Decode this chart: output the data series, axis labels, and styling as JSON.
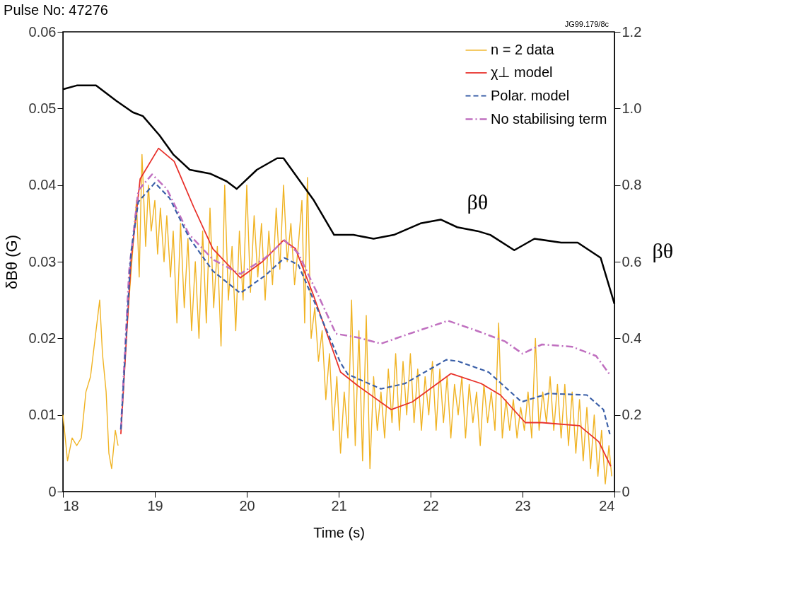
{
  "chart_data": {
    "type": "line",
    "title": "Pulse No: 47276",
    "xlabel": "Time (s)",
    "ylabel": "δBθ (G)",
    "y2label": "βθ",
    "annotations": [
      "JG99.179/8c"
    ],
    "xlim": [
      18,
      24
    ],
    "xticks": [
      18,
      19,
      20,
      21,
      22,
      23,
      24
    ],
    "ylim": [
      0,
      0.06
    ],
    "yticks": [
      0,
      0.01,
      0.02,
      0.03,
      0.04,
      0.05,
      0.06
    ],
    "y2lim": [
      0,
      1.2
    ],
    "y2ticks": [
      0,
      0.2,
      0.4,
      0.6,
      0.8,
      {
        "value": 1,
        "label": "1.0"
      },
      1.2
    ],
    "grid": false,
    "legend": "top right",
    "marker": "none",
    "series": [
      {
        "name": "n = 2 data",
        "color": "#f0b323",
        "line_style": "solid",
        "x": [
          18.0,
          18.05,
          18.1,
          18.15,
          18.2,
          18.25,
          18.3,
          18.35,
          18.4,
          18.43,
          18.47,
          18.5,
          18.53,
          18.57,
          18.6,
          18.65,
          18.7,
          18.75,
          18.8,
          18.83,
          18.86,
          18.9,
          18.93,
          18.96,
          19.0,
          19.03,
          19.06,
          19.1,
          19.13,
          19.17,
          19.2,
          19.24,
          19.28,
          19.32,
          19.36,
          19.4,
          19.44,
          19.48,
          19.52,
          19.56,
          19.6,
          19.64,
          19.68,
          19.72,
          19.76,
          19.8,
          19.84,
          19.88,
          19.92,
          19.96,
          20.0,
          20.04,
          20.08,
          20.12,
          20.16,
          20.2,
          20.24,
          20.28,
          20.32,
          20.36,
          20.4,
          20.44,
          20.48,
          20.52,
          20.56,
          20.6,
          20.63,
          20.66,
          20.7,
          20.74,
          20.78,
          20.82,
          20.86,
          20.9,
          20.94,
          20.98,
          21.02,
          21.06,
          21.1,
          21.14,
          21.18,
          21.22,
          21.26,
          21.3,
          21.34,
          21.38,
          21.42,
          21.46,
          21.5,
          21.54,
          21.58,
          21.62,
          21.66,
          21.7,
          21.74,
          21.78,
          21.82,
          21.86,
          21.9,
          21.94,
          21.98,
          22.02,
          22.06,
          22.1,
          22.14,
          22.18,
          22.22,
          22.26,
          22.3,
          22.34,
          22.38,
          22.42,
          22.46,
          22.5,
          22.54,
          22.58,
          22.62,
          22.66,
          22.7,
          22.74,
          22.78,
          22.82,
          22.86,
          22.9,
          22.94,
          22.98,
          23.02,
          23.06,
          23.1,
          23.14,
          23.18,
          23.22,
          23.26,
          23.3,
          23.34,
          23.38,
          23.42,
          23.46,
          23.5,
          23.54,
          23.58,
          23.62,
          23.66,
          23.7,
          23.74,
          23.78,
          23.82,
          23.86,
          23.9,
          23.94,
          23.97
        ],
        "values": [
          0.01,
          0.004,
          0.007,
          0.006,
          0.007,
          0.013,
          0.015,
          0.02,
          0.025,
          0.018,
          0.013,
          0.005,
          0.003,
          0.008,
          0.006,
          null,
          0.022,
          0.03,
          0.038,
          0.028,
          0.044,
          0.032,
          0.04,
          0.034,
          0.038,
          0.031,
          0.037,
          0.03,
          0.036,
          0.028,
          0.034,
          0.022,
          0.035,
          0.024,
          0.033,
          0.021,
          0.03,
          0.02,
          0.034,
          0.022,
          0.037,
          0.024,
          0.032,
          0.019,
          0.04,
          0.025,
          0.032,
          0.021,
          0.034,
          0.025,
          0.04,
          0.026,
          0.036,
          0.028,
          0.035,
          0.025,
          0.034,
          0.027,
          0.037,
          0.029,
          0.04,
          0.03,
          0.035,
          0.027,
          0.032,
          0.038,
          0.022,
          0.041,
          0.02,
          0.024,
          0.017,
          0.021,
          0.012,
          0.018,
          0.008,
          0.015,
          0.005,
          0.013,
          0.007,
          0.025,
          0.006,
          0.021,
          0.004,
          0.023,
          0.003,
          0.015,
          0.008,
          0.013,
          0.007,
          0.016,
          0.009,
          0.018,
          0.008,
          0.017,
          0.01,
          0.018,
          0.009,
          0.016,
          0.008,
          0.015,
          0.01,
          0.017,
          0.008,
          0.016,
          0.009,
          0.015,
          0.007,
          0.014,
          0.01,
          0.015,
          0.007,
          0.014,
          0.009,
          0.013,
          0.006,
          0.014,
          0.009,
          0.013,
          0.008,
          0.022,
          0.007,
          0.012,
          0.008,
          0.012,
          0.007,
          0.011,
          0.008,
          0.013,
          0.007,
          0.02,
          0.008,
          0.013,
          0.009,
          0.015,
          0.008,
          0.014,
          0.007,
          0.014,
          0.006,
          0.013,
          0.005,
          0.012,
          0.004,
          0.011,
          0.003,
          0.01,
          0.002,
          0.008,
          0.001,
          0.006,
          0.002
        ]
      },
      {
        "name": "χ⊥ model",
        "color": "#e8302a",
        "line_style": "solid",
        "x": [
          18.63,
          18.74,
          18.84,
          19.04,
          19.21,
          19.42,
          19.63,
          19.93,
          20.17,
          20.4,
          20.53,
          20.72,
          21.02,
          21.21,
          21.57,
          21.8,
          22.22,
          22.55,
          22.76,
          23.03,
          23.21,
          23.62,
          23.83,
          23.96
        ],
        "values": [
          0.0075,
          0.03,
          0.0408,
          0.0448,
          0.0431,
          0.0372,
          0.0317,
          0.0279,
          0.03,
          0.0328,
          0.0317,
          0.0258,
          0.0156,
          0.0138,
          0.0107,
          0.0117,
          0.0154,
          0.0141,
          0.0126,
          0.009,
          0.009,
          0.0086,
          0.0065,
          0.0033
        ]
      },
      {
        "name": "Polar. model",
        "color": "#3a5fa8",
        "line_style": "dashed",
        "x": [
          18.63,
          18.74,
          18.82,
          19.0,
          19.16,
          19.37,
          19.63,
          19.93,
          20.2,
          20.41,
          20.56,
          20.72,
          21.02,
          21.1,
          21.46,
          21.72,
          22.17,
          22.3,
          22.63,
          22.99,
          23.28,
          23.7,
          23.88,
          23.95
        ],
        "values": [
          0.0081,
          0.0311,
          0.0378,
          0.0403,
          0.0383,
          0.0332,
          0.0288,
          0.0259,
          0.0282,
          0.0305,
          0.0296,
          0.0252,
          0.0168,
          0.0153,
          0.0134,
          0.0141,
          0.0172,
          0.017,
          0.0156,
          0.0117,
          0.0128,
          0.0126,
          0.0107,
          0.0075
        ]
      },
      {
        "name": "No stabilising term",
        "color": "#c070c0",
        "line_style": "dashdot",
        "x": [
          18.63,
          18.72,
          18.82,
          18.97,
          19.13,
          19.37,
          19.63,
          19.93,
          20.2,
          20.41,
          20.56,
          20.77,
          20.97,
          21.21,
          21.46,
          21.72,
          22.19,
          22.5,
          22.81,
          23.0,
          23.21,
          23.54,
          23.8,
          23.96
        ],
        "values": [
          0.0081,
          0.0288,
          0.0393,
          0.0414,
          0.0395,
          0.0336,
          0.0303,
          0.0284,
          0.0305,
          0.0328,
          0.0311,
          0.0258,
          0.0206,
          0.0201,
          0.0193,
          0.0204,
          0.0223,
          0.021,
          0.0196,
          0.018,
          0.0192,
          0.0189,
          0.0177,
          0.0151
        ]
      },
      {
        "name": "βθ",
        "color": "#000000",
        "line_style": "solid",
        "axis": "y2",
        "x": [
          18.0,
          18.15,
          18.36,
          18.58,
          18.76,
          18.87,
          19.05,
          19.2,
          19.38,
          19.6,
          19.78,
          19.89,
          20.11,
          20.33,
          20.4,
          20.73,
          20.95,
          21.16,
          21.38,
          21.6,
          21.89,
          22.11,
          22.29,
          22.51,
          22.65,
          22.91,
          23.13,
          23.42,
          23.6,
          23.85,
          24.0
        ],
        "values": [
          1.05,
          1.06,
          1.06,
          1.02,
          0.99,
          0.98,
          0.93,
          0.88,
          0.84,
          0.83,
          0.81,
          0.79,
          0.84,
          0.87,
          0.87,
          0.76,
          0.67,
          0.67,
          0.66,
          0.67,
          0.7,
          0.71,
          0.69,
          0.68,
          0.67,
          0.63,
          0.66,
          0.65,
          0.65,
          0.61,
          0.49
        ]
      }
    ]
  }
}
